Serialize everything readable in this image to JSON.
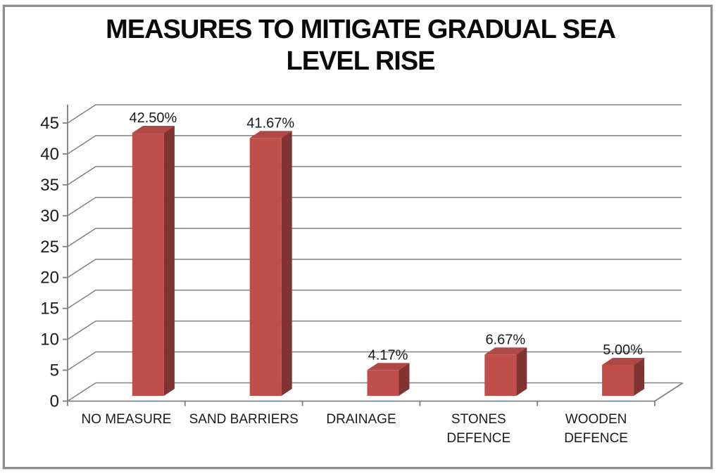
{
  "window": {
    "background": "#ffffff",
    "border_color": "#8f8f8f"
  },
  "chart_data": {
    "type": "bar",
    "style": "3d-clustered-column",
    "title": "MEASURES TO MITIGATE GRADUAL SEA LEVEL RISE",
    "categories": [
      "NO MEASURE",
      "SAND BARRIERS",
      "DRAINAGE",
      "STONES DEFENCE",
      "WOODEN DEFENCE"
    ],
    "category_lines": [
      [
        "NO MEASURE"
      ],
      [
        "SAND BARRIERS"
      ],
      [
        "DRAINAGE"
      ],
      [
        "STONES",
        "DEFENCE"
      ],
      [
        "WOODEN",
        "DEFENCE"
      ]
    ],
    "values": [
      42.5,
      41.67,
      4.17,
      6.67,
      5.0
    ],
    "value_labels": [
      "42.50%",
      "41.67%",
      "4.17%",
      "6.67%",
      "5.00%"
    ],
    "y_ticks": [
      0,
      5,
      10,
      15,
      20,
      25,
      30,
      35,
      40,
      45
    ],
    "ylim": [
      0,
      45
    ],
    "xlabel": "",
    "ylabel": "",
    "grid": true,
    "legend": "none",
    "colors": {
      "bar_front": "#c04e4a",
      "bar_top": "#b04845",
      "bar_side": "#803331",
      "gridline": "#808080",
      "axis": "#7f7f7f",
      "text": "#1a1a1a",
      "title": "#0a0a0a"
    }
  }
}
